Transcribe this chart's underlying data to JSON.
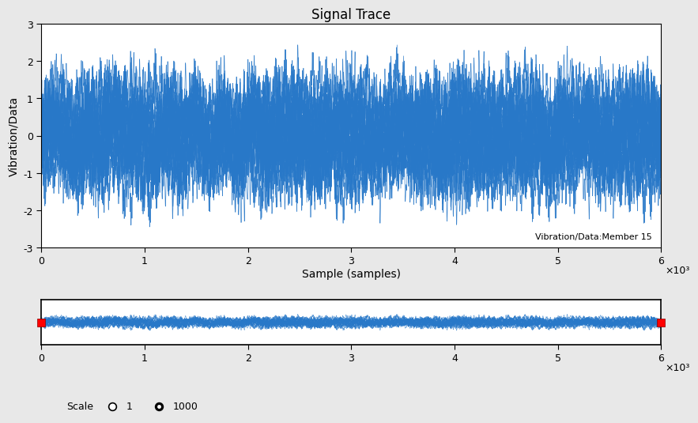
{
  "title": "Signal Trace",
  "xlabel": "Sample (samples)",
  "ylabel": "Vibration/Data",
  "annotation": "Vibration/Data:Member 15",
  "xlim": [
    0,
    6000
  ],
  "ylim": [
    -3,
    3
  ],
  "yticks": [
    -3,
    -2,
    -1,
    0,
    1,
    2,
    3
  ],
  "xticks": [
    0,
    1000,
    2000,
    3000,
    4000,
    5000,
    6000
  ],
  "xtick_labels": [
    "0",
    "1",
    "2",
    "3",
    "4",
    "5",
    "6"
  ],
  "xscale_label": "×10³",
  "line_color": "#2878C8",
  "bg_color": "#E8E8E8",
  "plot_bg_color": "#FFFFFF",
  "n_samples": 6000,
  "n_signals": 25,
  "seed": 42,
  "scale_text": "Scale",
  "scale_options": [
    "1",
    "1000"
  ],
  "title_fontsize": 12,
  "label_fontsize": 10,
  "tick_fontsize": 9,
  "annotation_fontsize": 8
}
